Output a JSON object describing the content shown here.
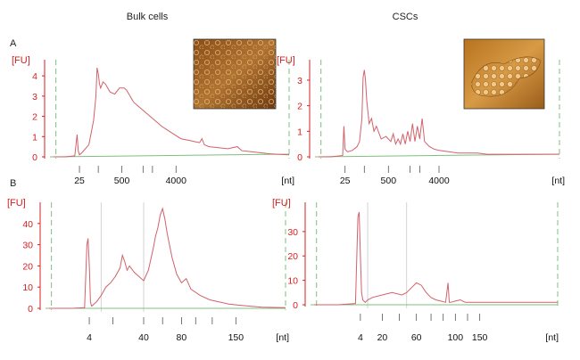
{
  "column_titles": [
    "Bulk cells",
    "CSCs"
  ],
  "row_labels": [
    "A",
    "B"
  ],
  "colors": {
    "trace": "#d2616a",
    "axis_text": "#d42020",
    "marker": "#7cc07c",
    "grid": "#c8c8c8"
  },
  "chart_data": [
    {
      "type": "line",
      "panel": "A - Bulk cells",
      "ylabel": "[FU]",
      "xlabel": "[nt]",
      "yticks": [
        "0",
        "1",
        "2",
        "3",
        "4"
      ],
      "ylim": [
        0,
        4.8
      ],
      "xlim": [
        0,
        100
      ],
      "xticks": [
        {
          "label": "25",
          "x": 11
        },
        {
          "label": "500",
          "x": 29
        },
        {
          "label": "4000",
          "x": 52
        }
      ],
      "minor_ticks": [
        19,
        38,
        42
      ],
      "marker_x": [
        1,
        100
      ],
      "has_photo": true,
      "x": [
        0,
        5,
        9,
        10,
        10.5,
        11,
        12,
        15,
        17,
        18,
        18.5,
        19,
        19.5,
        20,
        21,
        22,
        23,
        24,
        26,
        28,
        30,
        31,
        32,
        33,
        34,
        36,
        38,
        40,
        42,
        44,
        46,
        48,
        50,
        52,
        54,
        56,
        58,
        60,
        62,
        63,
        64,
        66,
        70,
        74,
        78,
        80,
        84,
        88,
        92,
        96,
        100
      ],
      "y": [
        0,
        0,
        0.05,
        1.1,
        0.3,
        0.1,
        0.2,
        0.6,
        1.8,
        3.0,
        4.4,
        4.1,
        3.6,
        3.4,
        3.7,
        3.6,
        3.4,
        3.2,
        3.1,
        3.4,
        3.4,
        3.3,
        3.1,
        2.9,
        2.7,
        2.5,
        2.3,
        2.1,
        1.9,
        1.7,
        1.5,
        1.35,
        1.2,
        1.05,
        0.9,
        0.85,
        0.8,
        0.75,
        0.7,
        0.9,
        0.6,
        0.5,
        0.45,
        0.4,
        0.5,
        0.3,
        0.25,
        0.2,
        0.15,
        0.12,
        0.1
      ]
    },
    {
      "type": "line",
      "panel": "A - CSCs",
      "ylabel": "[FU]",
      "xlabel": "[nt]",
      "yticks": [
        "0",
        "1",
        "2",
        "3"
      ],
      "ylim": [
        0,
        3.8
      ],
      "xlim": [
        0,
        100
      ],
      "xticks": [
        {
          "label": "25",
          "x": 11
        },
        {
          "label": "500",
          "x": 29
        },
        {
          "label": "4000",
          "x": 50
        }
      ],
      "minor_ticks": [
        19,
        38,
        42
      ],
      "marker_x": [
        1,
        100
      ],
      "has_photo": true,
      "x": [
        0,
        5,
        10,
        10.5,
        11,
        12,
        14,
        16,
        17,
        18,
        18.5,
        19,
        19.5,
        20,
        21,
        22,
        23,
        24,
        26,
        28,
        30,
        31,
        32,
        33,
        34,
        35,
        36,
        37,
        38,
        39,
        40,
        41,
        42,
        43,
        44,
        46,
        48,
        50,
        54,
        58,
        62,
        66,
        70,
        80,
        90,
        100
      ],
      "y": [
        0,
        0,
        0.05,
        1.2,
        0.3,
        0.2,
        0.25,
        0.4,
        0.6,
        1.5,
        3.1,
        3.4,
        3.0,
        2.2,
        1.3,
        1.5,
        1.0,
        1.2,
        0.7,
        0.8,
        0.6,
        0.9,
        0.5,
        0.7,
        0.5,
        0.9,
        0.5,
        1.0,
        0.6,
        1.3,
        0.6,
        1.2,
        0.7,
        1.5,
        0.6,
        0.4,
        0.3,
        0.25,
        0.2,
        0.15,
        0.15,
        0.15,
        0.1,
        0.1,
        0.1,
        0.1
      ]
    },
    {
      "type": "line",
      "panel": "B - Bulk cells",
      "ylabel": "[FU]",
      "xlabel": "[nt]",
      "yticks": [
        "0",
        "10",
        "20",
        "30",
        "40"
      ],
      "ylim": [
        0,
        50
      ],
      "xlim": [
        0,
        100
      ],
      "xticks": [
        {
          "label": "4",
          "x": 17
        },
        {
          "label": "40",
          "x": 40
        },
        {
          "label": "80",
          "x": 56
        },
        {
          "label": "150",
          "x": 79
        }
      ],
      "minor_ticks": [
        27,
        48,
        62,
        69
      ],
      "vgrid_x": [
        22,
        40
      ],
      "marker_x": [
        1,
        100
      ],
      "has_photo": false,
      "x": [
        0,
        10,
        15,
        16,
        16.5,
        17,
        17.5,
        18,
        19,
        20,
        22,
        24,
        26,
        28,
        30,
        31,
        32,
        33,
        34,
        36,
        38,
        40,
        42,
        44,
        45,
        46,
        47,
        48,
        49,
        50,
        52,
        54,
        56,
        58,
        60,
        64,
        68,
        72,
        76,
        80,
        85,
        90,
        100
      ],
      "y": [
        0,
        0,
        0.3,
        30,
        33,
        20,
        3,
        1,
        2,
        3,
        6,
        10,
        12,
        15,
        19,
        25,
        22,
        18,
        20,
        17,
        15,
        13,
        18,
        28,
        34,
        38,
        44,
        47,
        42,
        35,
        24,
        16,
        12,
        14,
        9,
        6,
        4,
        3,
        2,
        1.5,
        1,
        0.5,
        0.3
      ]
    },
    {
      "type": "line",
      "panel": "B - CSCs",
      "ylabel": "[FU]",
      "xlabel": "[nt]",
      "yticks": [
        "0",
        "10",
        "20",
        "30"
      ],
      "ylim": [
        0,
        42
      ],
      "xlim": [
        0,
        100
      ],
      "xticks": [
        {
          "label": "4",
          "x": 19
        },
        {
          "label": "20",
          "x": 28
        },
        {
          "label": "60",
          "x": 42
        },
        {
          "label": "100",
          "x": 58
        },
        {
          "label": "150",
          "x": 68
        }
      ],
      "minor_ticks": [
        35,
        48,
        53,
        63
      ],
      "vgrid_x": [
        22,
        38
      ],
      "marker_x": [
        1,
        100
      ],
      "has_photo": false,
      "x": [
        0,
        10,
        17,
        18,
        18.5,
        19,
        19.5,
        20,
        21,
        22,
        24,
        28,
        32,
        36,
        38,
        40,
        42,
        44,
        46,
        48,
        50,
        52,
        54,
        55,
        55.5,
        56,
        58,
        60,
        62,
        64,
        70,
        80,
        90,
        100
      ],
      "y": [
        0,
        0,
        0.5,
        36,
        38,
        20,
        5,
        2,
        1,
        2,
        3,
        4,
        5,
        4,
        5,
        7,
        9,
        8,
        5,
        3,
        2,
        1.5,
        1,
        9,
        1,
        1,
        1.5,
        2,
        1,
        1,
        1,
        1,
        1,
        1
      ]
    }
  ]
}
